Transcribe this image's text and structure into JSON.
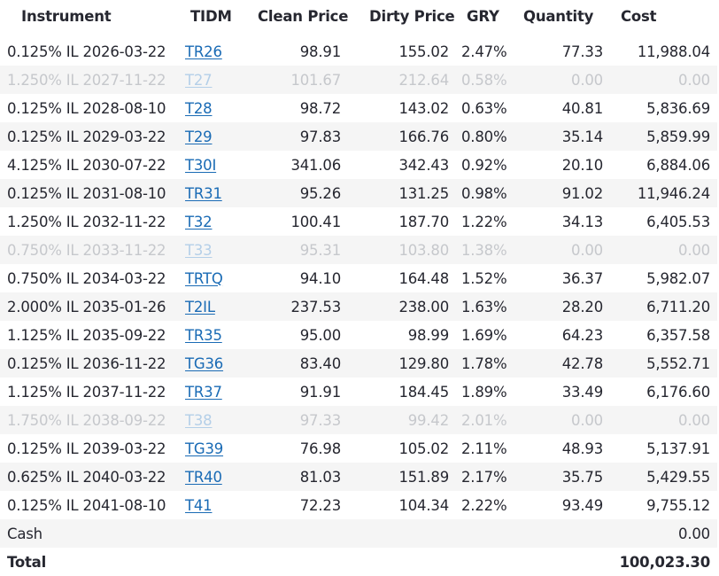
{
  "headers": {
    "instrument": "Instrument",
    "tidm": "TIDM",
    "clean_price": "Clean Price",
    "dirty_price": "Dirty Price",
    "gry": "GRY",
    "quantity": "Quantity",
    "cost": "Cost"
  },
  "rows": [
    {
      "instrument": "0.125% IL 2026-03-22",
      "tidm": "TR26",
      "clean": "98.91",
      "dirty": "155.02",
      "gry": "2.47%",
      "qty": "77.33",
      "cost": "11,988.04",
      "inactive": false
    },
    {
      "instrument": "1.250% IL 2027-11-22",
      "tidm": "T27",
      "clean": "101.67",
      "dirty": "212.64",
      "gry": "0.58%",
      "qty": "0.00",
      "cost": "0.00",
      "inactive": true
    },
    {
      "instrument": "0.125% IL 2028-08-10",
      "tidm": "T28",
      "clean": "98.72",
      "dirty": "143.02",
      "gry": "0.63%",
      "qty": "40.81",
      "cost": "5,836.69",
      "inactive": false
    },
    {
      "instrument": "0.125% IL 2029-03-22",
      "tidm": "T29",
      "clean": "97.83",
      "dirty": "166.76",
      "gry": "0.80%",
      "qty": "35.14",
      "cost": "5,859.99",
      "inactive": false
    },
    {
      "instrument": "4.125% IL 2030-07-22",
      "tidm": "T30I",
      "clean": "341.06",
      "dirty": "342.43",
      "gry": "0.92%",
      "qty": "20.10",
      "cost": "6,884.06",
      "inactive": false
    },
    {
      "instrument": "0.125% IL 2031-08-10",
      "tidm": "TR31",
      "clean": "95.26",
      "dirty": "131.25",
      "gry": "0.98%",
      "qty": "91.02",
      "cost": "11,946.24",
      "inactive": false
    },
    {
      "instrument": "1.250% IL 2032-11-22",
      "tidm": "T32",
      "clean": "100.41",
      "dirty": "187.70",
      "gry": "1.22%",
      "qty": "34.13",
      "cost": "6,405.53",
      "inactive": false
    },
    {
      "instrument": "0.750% IL 2033-11-22",
      "tidm": "T33",
      "clean": "95.31",
      "dirty": "103.80",
      "gry": "1.38%",
      "qty": "0.00",
      "cost": "0.00",
      "inactive": true
    },
    {
      "instrument": "0.750% IL 2034-03-22",
      "tidm": "TRTQ",
      "clean": "94.10",
      "dirty": "164.48",
      "gry": "1.52%",
      "qty": "36.37",
      "cost": "5,982.07",
      "inactive": false
    },
    {
      "instrument": "2.000% IL 2035-01-26",
      "tidm": "T2IL",
      "clean": "237.53",
      "dirty": "238.00",
      "gry": "1.63%",
      "qty": "28.20",
      "cost": "6,711.20",
      "inactive": false
    },
    {
      "instrument": "1.125% IL 2035-09-22",
      "tidm": "TR35",
      "clean": "95.00",
      "dirty": "98.99",
      "gry": "1.69%",
      "qty": "64.23",
      "cost": "6,357.58",
      "inactive": false
    },
    {
      "instrument": "0.125% IL 2036-11-22",
      "tidm": "TG36",
      "clean": "83.40",
      "dirty": "129.80",
      "gry": "1.78%",
      "qty": "42.78",
      "cost": "5,552.71",
      "inactive": false
    },
    {
      "instrument": "1.125% IL 2037-11-22",
      "tidm": "TR37",
      "clean": "91.91",
      "dirty": "184.45",
      "gry": "1.89%",
      "qty": "33.49",
      "cost": "6,176.60",
      "inactive": false
    },
    {
      "instrument": "1.750% IL 2038-09-22",
      "tidm": "T38",
      "clean": "97.33",
      "dirty": "99.42",
      "gry": "2.01%",
      "qty": "0.00",
      "cost": "0.00",
      "inactive": true
    },
    {
      "instrument": "0.125% IL 2039-03-22",
      "tidm": "TG39",
      "clean": "76.98",
      "dirty": "105.02",
      "gry": "2.11%",
      "qty": "48.93",
      "cost": "5,137.91",
      "inactive": false
    },
    {
      "instrument": "0.625% IL 2040-03-22",
      "tidm": "TR40",
      "clean": "81.03",
      "dirty": "151.89",
      "gry": "2.17%",
      "qty": "35.75",
      "cost": "5,429.55",
      "inactive": false
    },
    {
      "instrument": "0.125% IL 2041-08-10",
      "tidm": "T41",
      "clean": "72.23",
      "dirty": "104.34",
      "gry": "2.22%",
      "qty": "93.49",
      "cost": "9,755.12",
      "inactive": false
    }
  ],
  "cash": {
    "label": "Cash",
    "cost": "0.00"
  },
  "total": {
    "label": "Total",
    "cost": "100,023.30"
  },
  "colors": {
    "link": "#1a6bb5",
    "link_inactive": "#b4cfe8",
    "text": "#262730",
    "text_inactive": "#c6c8cc",
    "zebra": "#f5f5f5"
  }
}
